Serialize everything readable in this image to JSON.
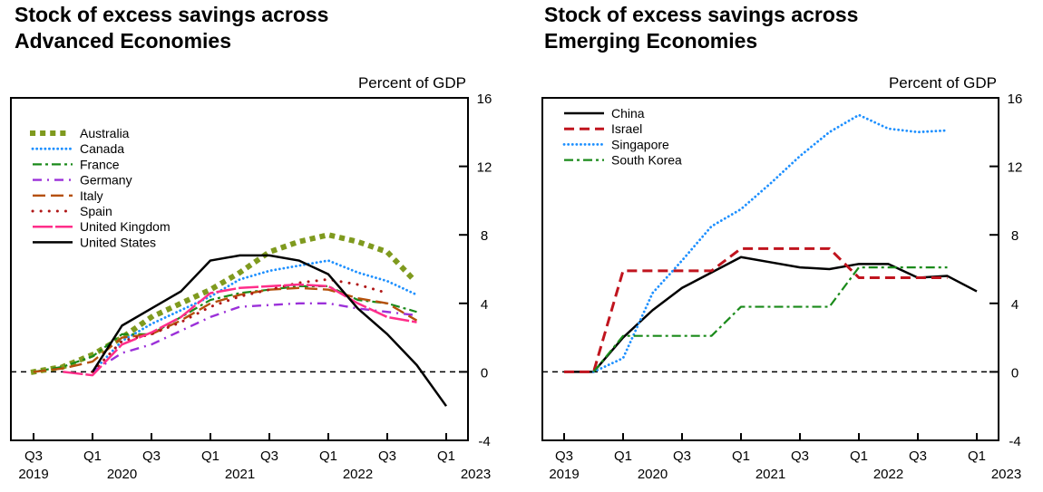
{
  "chart_data": [
    {
      "type": "line",
      "title": [
        "Stock of excess savings across",
        "Advanced Economies"
      ],
      "ylabel": "Percent of GDP",
      "ylim": [
        -4,
        16
      ],
      "yticks": [
        "16",
        "12",
        "8",
        "4",
        "0",
        "-4"
      ],
      "quarters": [
        "2019Q3",
        "2019Q4",
        "2020Q1",
        "2020Q2",
        "2020Q3",
        "2020Q4",
        "2021Q1",
        "2021Q2",
        "2021Q3",
        "2021Q4",
        "2022Q1",
        "2022Q2",
        "2022Q3",
        "2022Q4",
        "2023Q1"
      ],
      "xticks": [
        {
          "q": "Q3",
          "y": "2019",
          "at": "2019Q3"
        },
        {
          "q": "Q1",
          "y": "2020",
          "at": "2020Q1"
        },
        {
          "q": "Q3",
          "y": "",
          "at": "2020Q3"
        },
        {
          "q": "Q1",
          "y": "2021",
          "at": "2021Q1"
        },
        {
          "q": "Q3",
          "y": "",
          "at": "2021Q3"
        },
        {
          "q": "Q1",
          "y": "2022",
          "at": "2022Q1"
        },
        {
          "q": "Q3",
          "y": "",
          "at": "2022Q3"
        },
        {
          "q": "Q1",
          "y": "2023",
          "at": "2023Q1"
        }
      ],
      "legend": "top-left",
      "series": [
        {
          "name": "Australia",
          "color": "#7f9a1e",
          "dash": "dots-big",
          "values": [
            0,
            0.3,
            1.0,
            2.0,
            3.2,
            4.0,
            4.8,
            5.8,
            7.0,
            7.6,
            8.0,
            7.6,
            7.0,
            5.2,
            null
          ]
        },
        {
          "name": "Canada",
          "color": "#1e90ff",
          "dash": "dots",
          "values": [
            null,
            null,
            0,
            1.8,
            2.8,
            3.6,
            4.4,
            5.4,
            5.9,
            6.2,
            6.5,
            5.8,
            5.3,
            4.5,
            null
          ]
        },
        {
          "name": "France",
          "color": "#1a8a1a",
          "dash": "dashdot",
          "values": [
            0,
            0.3,
            0.9,
            2.2,
            2.2,
            3.2,
            4.2,
            4.6,
            4.8,
            5.0,
            5.0,
            4.2,
            4.0,
            3.5,
            null
          ]
        },
        {
          "name": "Germany",
          "color": "#9b30d9",
          "dash": "dashdot2",
          "values": [
            null,
            null,
            0,
            1.1,
            1.6,
            2.4,
            3.2,
            3.8,
            3.9,
            4.0,
            4.0,
            3.7,
            3.5,
            3.3,
            null
          ]
        },
        {
          "name": "Italy",
          "color": "#b5500b",
          "dash": "longdash",
          "values": [
            0,
            0.2,
            0.6,
            2.0,
            2.2,
            3.0,
            4.0,
            4.5,
            4.8,
            4.9,
            4.8,
            4.3,
            4.0,
            3.0,
            null
          ]
        },
        {
          "name": "Spain",
          "color": "#b01818",
          "dash": "sparse-dots",
          "values": [
            null,
            null,
            0,
            1.8,
            2.2,
            2.9,
            3.8,
            4.4,
            4.8,
            5.2,
            5.4,
            5.1,
            4.6,
            null,
            null
          ]
        },
        {
          "name": "United Kingdom",
          "color": "#ff2e8a",
          "dash": "longdash2",
          "values": [
            null,
            0,
            -0.2,
            1.6,
            2.3,
            3.2,
            4.6,
            4.9,
            5.0,
            5.1,
            5.0,
            4.0,
            3.2,
            2.9,
            null
          ]
        },
        {
          "name": "United States",
          "color": "#000000",
          "dash": "solid",
          "values": [
            null,
            null,
            0,
            2.7,
            3.7,
            4.7,
            6.5,
            6.8,
            6.8,
            6.5,
            5.7,
            3.7,
            2.2,
            0.4,
            -2.0
          ]
        }
      ]
    },
    {
      "type": "line",
      "title": [
        "Stock of excess savings across",
        "Emerging Economies"
      ],
      "ylabel": "Percent of GDP",
      "ylim": [
        -4,
        16
      ],
      "yticks": [
        "16",
        "12",
        "8",
        "4",
        "0",
        "-4"
      ],
      "quarters": [
        "2019Q3",
        "2019Q4",
        "2020Q1",
        "2020Q2",
        "2020Q3",
        "2020Q4",
        "2021Q1",
        "2021Q2",
        "2021Q3",
        "2021Q4",
        "2022Q1",
        "2022Q2",
        "2022Q3",
        "2022Q4",
        "2023Q1"
      ],
      "xticks": [
        {
          "q": "Q3",
          "y": "2019",
          "at": "2019Q3"
        },
        {
          "q": "Q1",
          "y": "2020",
          "at": "2020Q1"
        },
        {
          "q": "Q3",
          "y": "",
          "at": "2020Q3"
        },
        {
          "q": "Q1",
          "y": "2021",
          "at": "2021Q1"
        },
        {
          "q": "Q3",
          "y": "",
          "at": "2021Q3"
        },
        {
          "q": "Q1",
          "y": "2022",
          "at": "2022Q1"
        },
        {
          "q": "Q3",
          "y": "",
          "at": "2022Q3"
        },
        {
          "q": "Q1",
          "y": "2023",
          "at": "2023Q1"
        }
      ],
      "legend": "top-left",
      "series": [
        {
          "name": "China",
          "color": "#000000",
          "dash": "solid",
          "values": [
            0,
            0,
            2.0,
            3.6,
            4.9,
            5.8,
            6.7,
            6.4,
            6.1,
            6.0,
            6.3,
            6.3,
            5.5,
            5.6,
            4.7
          ]
        },
        {
          "name": "Israel",
          "color": "#c0141e",
          "dash": "dash",
          "values": [
            0,
            0,
            5.9,
            5.9,
            5.9,
            5.9,
            7.2,
            7.2,
            7.2,
            7.2,
            5.5,
            5.5,
            5.5,
            5.5,
            null
          ]
        },
        {
          "name": "Singapore",
          "color": "#1e90ff",
          "dash": "dots",
          "values": [
            null,
            0,
            0.8,
            4.6,
            6.5,
            8.5,
            9.5,
            11.0,
            12.6,
            14.0,
            15.0,
            14.2,
            14.0,
            14.1,
            null
          ]
        },
        {
          "name": "South Korea",
          "color": "#1a8a1a",
          "dash": "dashdot",
          "values": [
            null,
            0,
            2.1,
            2.1,
            2.1,
            2.1,
            3.8,
            3.8,
            3.8,
            3.8,
            6.1,
            6.1,
            6.1,
            6.1,
            null
          ]
        }
      ]
    }
  ]
}
